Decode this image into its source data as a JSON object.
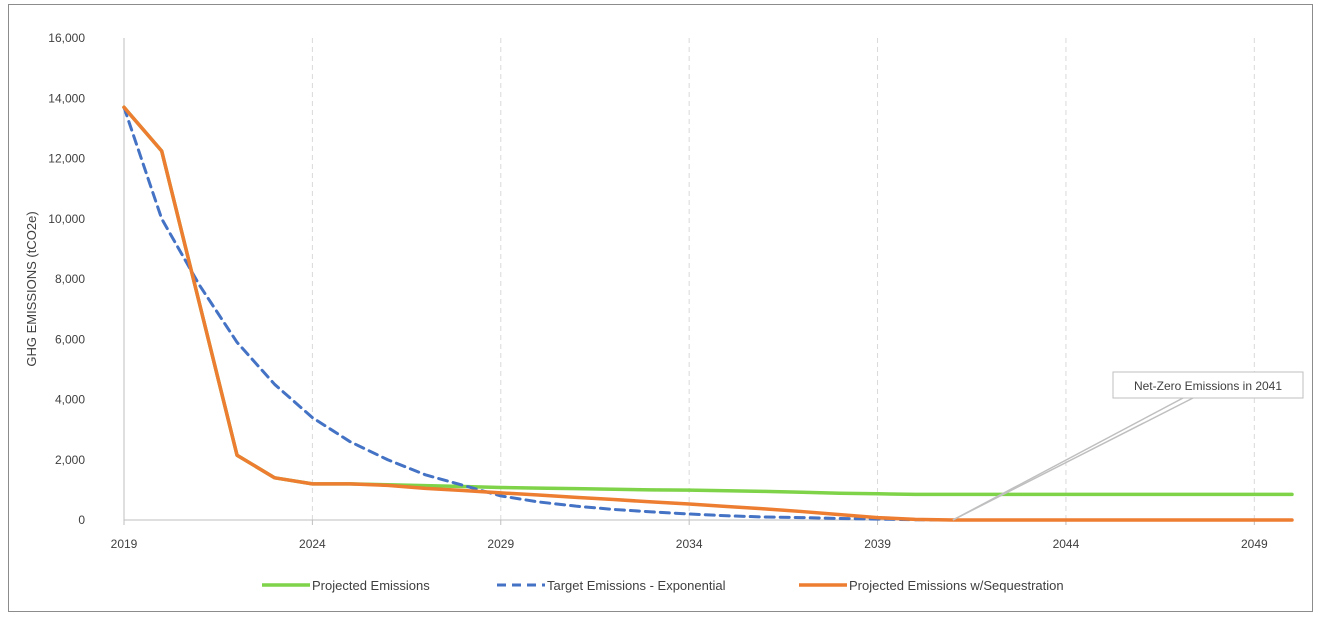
{
  "chart_data": {
    "type": "line",
    "title": "",
    "xlabel": "",
    "ylabel": "GHG EMISSIONS (tCO2e)",
    "x": [
      2019,
      2020,
      2021,
      2022,
      2023,
      2024,
      2025,
      2026,
      2027,
      2028,
      2029,
      2030,
      2031,
      2032,
      2033,
      2034,
      2035,
      2036,
      2037,
      2038,
      2039,
      2040,
      2041,
      2042,
      2043,
      2044,
      2045,
      2046,
      2047,
      2048,
      2049,
      2050
    ],
    "xticks": [
      2019,
      2024,
      2029,
      2034,
      2039,
      2044,
      2049
    ],
    "xtick_labels": [
      "2019",
      "2024",
      "2029",
      "2034",
      "2039",
      "2044",
      "2049"
    ],
    "xlim": [
      2019,
      2050
    ],
    "ylim": [
      0,
      16000
    ],
    "yticks": [
      0,
      2000,
      4000,
      6000,
      8000,
      10000,
      12000,
      14000,
      16000
    ],
    "ytick_labels": [
      "0",
      "2,000",
      "4,000",
      "6,000",
      "8,000",
      "10,000",
      "12,000",
      "14,000",
      "16,000"
    ],
    "grid": "vertical dashed",
    "legend_position": "bottom",
    "series": [
      {
        "name": "Projected Emissions",
        "color": "#7ed348",
        "dash": "solid",
        "values": [
          13700,
          12250,
          7200,
          2150,
          1400,
          1200,
          1200,
          1170,
          1140,
          1110,
          1080,
          1060,
          1040,
          1020,
          1000,
          990,
          970,
          950,
          920,
          890,
          870,
          850,
          850,
          850,
          850,
          850,
          850,
          850,
          850,
          850,
          850,
          850
        ]
      },
      {
        "name": "Target Emissions - Exponential",
        "color": "#4472c4",
        "dash": "dashed",
        "values": [
          13700,
          10000,
          7800,
          5900,
          4500,
          3400,
          2600,
          2000,
          1500,
          1150,
          800,
          600,
          460,
          350,
          270,
          200,
          140,
          100,
          80,
          50,
          30,
          10,
          0,
          0,
          0,
          0,
          0,
          0,
          0,
          0,
          0,
          0
        ]
      },
      {
        "name": "Projected Emissions w/Sequestration",
        "color": "#ed7d31",
        "dash": "solid",
        "values": [
          13700,
          12250,
          7200,
          2150,
          1400,
          1200,
          1200,
          1150,
          1050,
          980,
          900,
          830,
          750,
          680,
          600,
          530,
          450,
          370,
          280,
          180,
          80,
          20,
          0,
          0,
          0,
          0,
          0,
          0,
          0,
          0,
          0,
          0
        ]
      }
    ],
    "annotations": [
      {
        "text": "Net-Zero Emissions in 2041",
        "x": 2041,
        "y": 0
      }
    ]
  }
}
